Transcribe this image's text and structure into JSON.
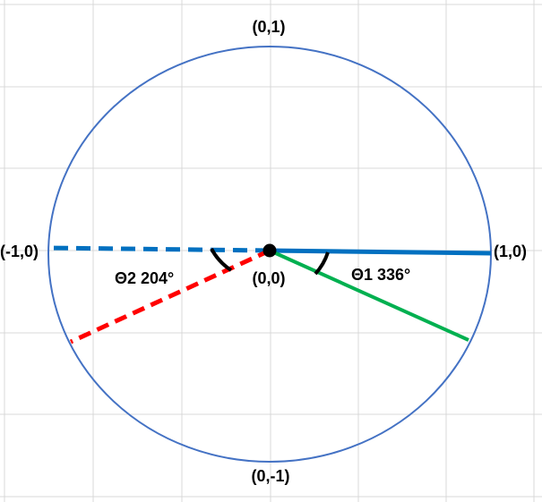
{
  "labels": {
    "top": "(0,1)",
    "bottom": "(0,-1)",
    "left": "(-1,0)",
    "right": "(1,0)",
    "origin": "(0,0)",
    "theta1": "Θ1 336°",
    "theta2": "Θ2 204°"
  },
  "angles": {
    "theta1_deg": 336,
    "theta2_deg": 204
  },
  "colors": {
    "circle": "#4472c4",
    "axis": "#0070c0",
    "theta1_line": "#00b050",
    "theta2_line": "#ff0000",
    "grid": "#d9d9d9",
    "arc": "#000000"
  }
}
